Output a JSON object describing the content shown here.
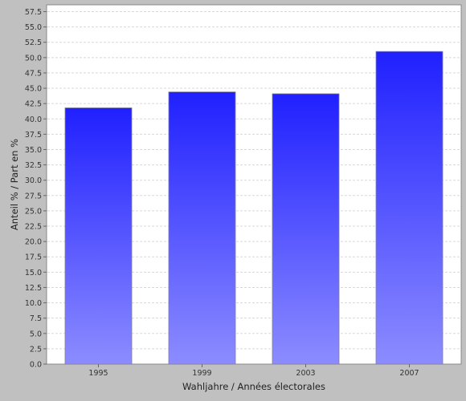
{
  "chart_data": {
    "type": "bar",
    "categories": [
      "1995",
      "1999",
      "2003",
      "2007"
    ],
    "series": [
      {
        "values": [
          41.8,
          44.4,
          44.1,
          51.0
        ]
      }
    ],
    "xlabel": "Wahljahre / Années électorales",
    "ylabel": "Anteil % / Part en %",
    "ylim": [
      0,
      57.5
    ],
    "ytick_step": 2.5,
    "yticks": [
      "0.0",
      "2.5",
      "5.0",
      "7.5",
      "10.0",
      "12.5",
      "15.0",
      "17.5",
      "20.0",
      "22.5",
      "25.0",
      "27.5",
      "30.0",
      "32.5",
      "35.0",
      "37.5",
      "40.0",
      "42.5",
      "45.0",
      "47.5",
      "50.0",
      "52.5",
      "55.0",
      "57.5"
    ],
    "grid": true,
    "legend": "none",
    "colors": {
      "bar_top": "#2020ff",
      "bar_bottom": "#8c8cff",
      "plot_background": "#ffffff",
      "page_background": "#c0c0c0",
      "gridline": "#d8d8d8"
    }
  }
}
